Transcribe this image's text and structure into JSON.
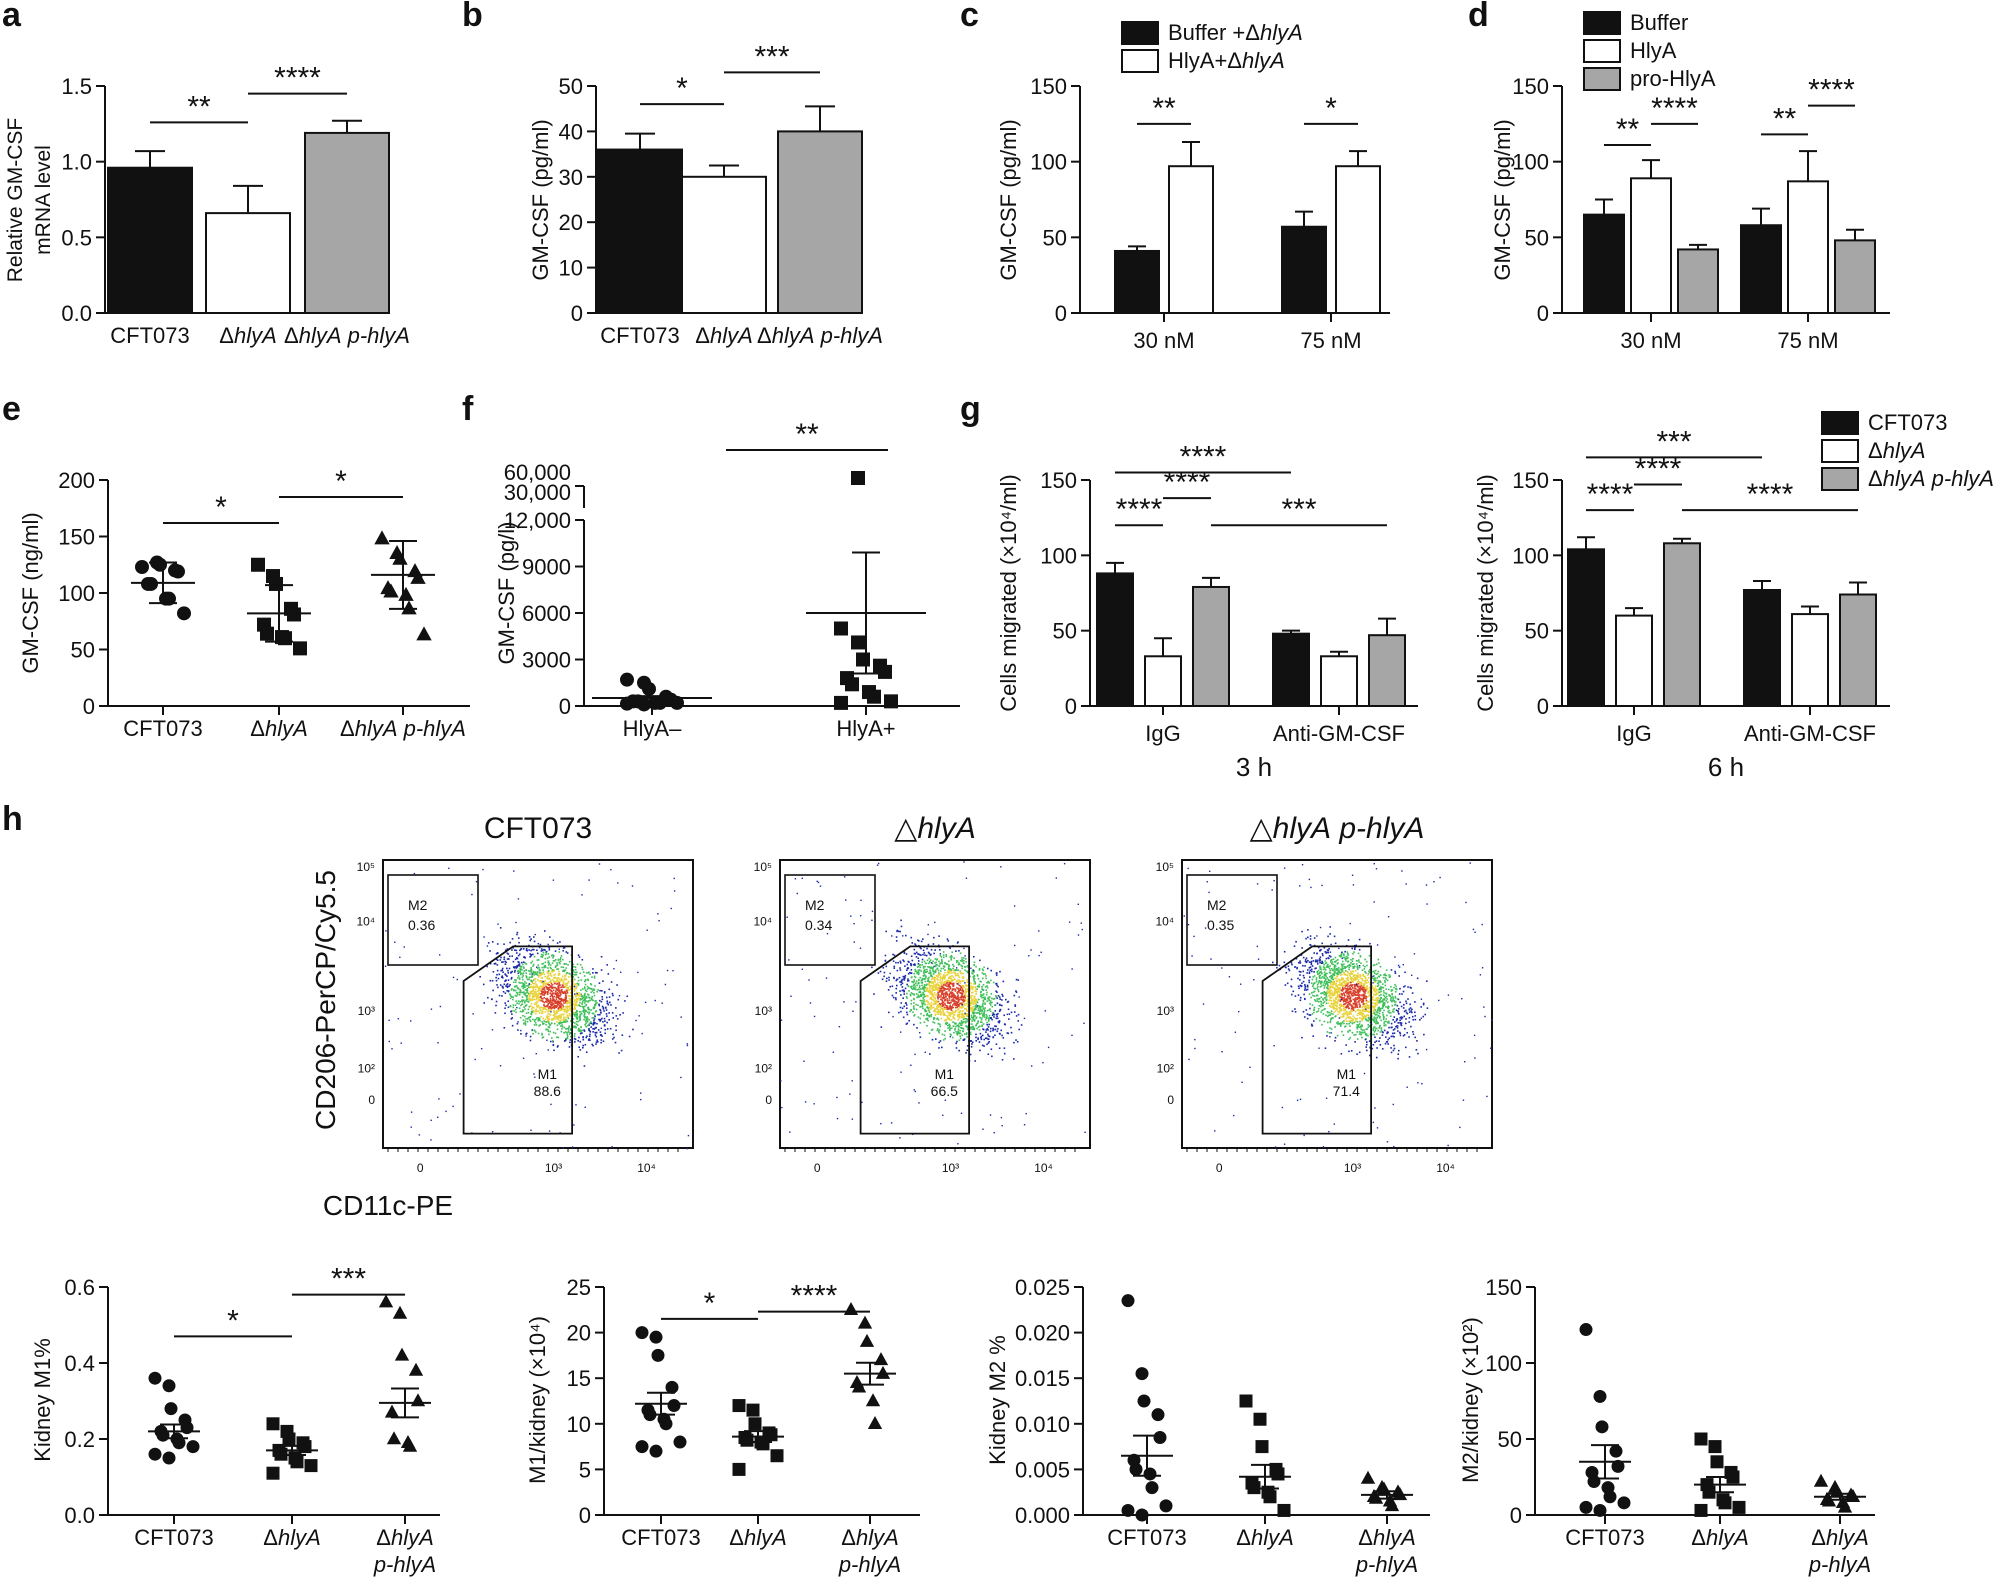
{
  "figure": {
    "panel_letters": [
      "a",
      "b",
      "c",
      "d",
      "e",
      "f",
      "g",
      "h"
    ],
    "legend_c": [
      "Buffer +ΔhlyA",
      "HlyA+ΔhlyA"
    ],
    "legend_d": [
      "Buffer",
      "HlyA",
      "pro-HlyA"
    ],
    "legend_g": [
      "CFT073",
      "ΔhlyA",
      "ΔhlyA p-hlyA"
    ]
  },
  "colors": {
    "black": "#111111",
    "white": "#ffffff",
    "gray": "#a6a6a6",
    "flow_blue": "#1a2aa8",
    "flow_green": "#3fbf5a",
    "flow_yellow": "#e8d23a",
    "flow_red": "#d8402b"
  },
  "chart_data": [
    {
      "id": "a",
      "type": "bar",
      "title": "",
      "xlabel": "",
      "ylabel": "Relative GM-CSF mRNA level",
      "ylabel_lines": [
        "Relative GM-CSF",
        "mRNA level"
      ],
      "categories": [
        "CFT073",
        "ΔhlyA",
        "ΔhlyA p-hlyA"
      ],
      "values": [
        0.96,
        0.66,
        1.19
      ],
      "errors": [
        0.11,
        0.18,
        0.08
      ],
      "bar_colors": [
        "black",
        "white",
        "gray"
      ],
      "ylim": [
        0,
        1.5
      ],
      "yticks": [
        0.0,
        0.5,
        1.0,
        1.5
      ],
      "ytick_labels": [
        "0.0",
        "0.5",
        "1.0",
        "1.5"
      ],
      "significance": [
        {
          "from": 0,
          "to": 1,
          "label": "**",
          "y": 1.26
        },
        {
          "from": 1,
          "to": 2,
          "label": "****",
          "y": 1.45
        }
      ]
    },
    {
      "id": "b",
      "type": "bar",
      "ylabel": "GM-CSF (pg/ml)",
      "categories": [
        "CFT073",
        "ΔhlyA",
        "ΔhlyA p-hlyA"
      ],
      "values": [
        36,
        30,
        40
      ],
      "errors": [
        3.5,
        2.5,
        5.5
      ],
      "bar_colors": [
        "black",
        "white",
        "gray"
      ],
      "ylim": [
        0,
        50
      ],
      "yticks": [
        0,
        10,
        20,
        30,
        40,
        50
      ],
      "significance": [
        {
          "from": 0,
          "to": 1,
          "label": "*",
          "y": 46
        },
        {
          "from": 1,
          "to": 2,
          "label": "***",
          "y": 53
        }
      ]
    },
    {
      "id": "c",
      "type": "bar",
      "ylabel": "GM-CSF (pg/ml)",
      "groups": [
        "30 nM",
        "75 nM"
      ],
      "series": [
        {
          "name": "Buffer +ΔhlyA",
          "color": "black",
          "values": [
            41,
            57
          ],
          "errors": [
            3,
            10
          ]
        },
        {
          "name": "HlyA+ΔhlyA",
          "color": "white",
          "values": [
            97,
            97
          ],
          "errors": [
            16,
            10
          ]
        }
      ],
      "ylim": [
        0,
        150
      ],
      "yticks": [
        0,
        50,
        100,
        150
      ],
      "significance": [
        {
          "group": 0,
          "from": 0,
          "to": 1,
          "label": "**",
          "y": 125
        },
        {
          "group": 1,
          "from": 0,
          "to": 1,
          "label": "*",
          "y": 125
        }
      ]
    },
    {
      "id": "d",
      "type": "bar",
      "ylabel": "GM-CSF (pg/ml)",
      "groups": [
        "30 nM",
        "75 nM"
      ],
      "series": [
        {
          "name": "Buffer",
          "color": "black",
          "values": [
            65,
            58
          ],
          "errors": [
            10,
            11
          ]
        },
        {
          "name": "HlyA",
          "color": "white",
          "values": [
            89,
            87
          ],
          "errors": [
            12,
            20
          ]
        },
        {
          "name": "pro-HlyA",
          "color": "gray",
          "values": [
            42,
            48
          ],
          "errors": [
            3,
            7
          ]
        }
      ],
      "ylim": [
        0,
        150
      ],
      "yticks": [
        0,
        50,
        100,
        150
      ],
      "significance": [
        {
          "group": 0,
          "from": 0,
          "to": 1,
          "label": "**",
          "y": 111
        },
        {
          "group": 0,
          "from": 1,
          "to": 2,
          "label": "****",
          "y": 125
        },
        {
          "group": 1,
          "from": 0,
          "to": 1,
          "label": "**",
          "y": 118
        },
        {
          "group": 1,
          "from": 1,
          "to": 2,
          "label": "****",
          "y": 137
        }
      ]
    },
    {
      "id": "e",
      "type": "scatter",
      "ylabel": "GM-CSF (ng/ml)",
      "categories": [
        "CFT073",
        "ΔhlyA",
        "ΔhlyA p-hlyA"
      ],
      "markers": [
        "circle",
        "square",
        "triangle"
      ],
      "points": [
        [
          123,
          127,
          125,
          120,
          119,
          108,
          108,
          95,
          95,
          82
        ],
        [
          125,
          115,
          108,
          86,
          81,
          72,
          64,
          61,
          60,
          51
        ],
        [
          148,
          135,
          130,
          119,
          113,
          104,
          101,
          98,
          86,
          63
        ]
      ],
      "means": [
        109,
        82,
        116
      ],
      "sd": [
        18,
        25,
        30
      ],
      "ylim": [
        0,
        200
      ],
      "yticks": [
        0,
        50,
        100,
        150,
        200
      ],
      "significance": [
        {
          "from": 0,
          "to": 1,
          "label": "*",
          "y": 162
        },
        {
          "from": 1,
          "to": 2,
          "label": "*",
          "y": 185
        }
      ]
    },
    {
      "id": "f",
      "type": "scatter",
      "ylabel": "GM-CSF (pg/l)",
      "categories": [
        "HlyA–",
        "HlyA+"
      ],
      "markers": [
        "circle",
        "square"
      ],
      "points": [
        [
          1700,
          1500,
          1100,
          600,
          400,
          300,
          300,
          200,
          200,
          200,
          150,
          100
        ],
        [
          5000,
          4100,
          3000,
          2600,
          2200,
          1800,
          1400,
          900,
          600,
          300,
          200,
          50000
        ]
      ],
      "means": [
        520,
        6000
      ],
      "sd": [
        120,
        3900
      ],
      "sem_lower": [
        220,
        2100
      ],
      "ylim": [
        0,
        12000
      ],
      "yticks": [
        0,
        3000,
        6000,
        9000,
        12000
      ],
      "ytick_labels": [
        "0",
        "3000",
        "6000",
        "9000",
        "12,000"
      ],
      "broken_axis_labels": [
        "30,000",
        "60,000"
      ],
      "significance": [
        {
          "from": 0,
          "to": 1,
          "label": "**",
          "y": "top"
        }
      ]
    },
    {
      "id": "g-3h",
      "type": "bar",
      "ylabel": "Cells migrated (×10⁴/ml)",
      "xlabel": "3 h",
      "groups": [
        "IgG",
        "Anti-GM-CSF"
      ],
      "series": [
        {
          "name": "CFT073",
          "color": "black",
          "values": [
            88,
            48
          ],
          "errors": [
            7,
            2
          ]
        },
        {
          "name": "ΔhlyA",
          "color": "white",
          "values": [
            33,
            33
          ],
          "errors": [
            12,
            3
          ]
        },
        {
          "name": "ΔhlyA p-hlyA",
          "color": "gray",
          "values": [
            79,
            47
          ],
          "errors": [
            6,
            11
          ]
        }
      ],
      "ylim": [
        0,
        150
      ],
      "yticks": [
        0,
        50,
        100,
        150
      ],
      "significance": [
        {
          "label": "****",
          "y": 120,
          "note": "IgG CFT073 vs IgG ΔhlyA"
        },
        {
          "label": "****",
          "y": 138,
          "note": "IgG ΔhlyA vs IgG ΔhlyA p-hlyA"
        },
        {
          "label": "****",
          "y": 155,
          "note": "IgG CFT073 vs Anti-GM-CSF CFT073"
        },
        {
          "label": "***",
          "y": 120,
          "note": "IgG ΔhlyA p-hlyA vs Anti-GM-CSF ΔhlyA p-hlyA"
        }
      ]
    },
    {
      "id": "g-6h",
      "type": "bar",
      "ylabel": "Cells migrated (×10⁴/ml)",
      "xlabel": "6 h",
      "groups": [
        "IgG",
        "Anti-GM-CSF"
      ],
      "series": [
        {
          "name": "CFT073",
          "color": "black",
          "values": [
            104,
            77
          ],
          "errors": [
            8,
            6
          ]
        },
        {
          "name": "ΔhlyA",
          "color": "white",
          "values": [
            60,
            61
          ],
          "errors": [
            5,
            5
          ]
        },
        {
          "name": "ΔhlyA p-hlyA",
          "color": "gray",
          "values": [
            108,
            74
          ],
          "errors": [
            3,
            8
          ]
        }
      ],
      "ylim": [
        0,
        150
      ],
      "yticks": [
        0,
        50,
        100,
        150
      ],
      "significance": [
        {
          "label": "****",
          "y": 130,
          "note": "IgG CFT073 vs IgG ΔhlyA"
        },
        {
          "label": "****",
          "y": 147,
          "note": "IgG ΔhlyA vs IgG ΔhlyA p-hlyA"
        },
        {
          "label": "***",
          "y": 165,
          "note": "IgG CFT073 vs Anti-GM-CSF CFT073"
        },
        {
          "label": "****",
          "y": 130,
          "note": "IgG ΔhlyA p-hlyA vs Anti-GM-CSF ΔhlyA p-hlyA"
        }
      ]
    },
    {
      "id": "h-flow",
      "type": "scatter",
      "ylabel": "CD206-PerCP/Cy5.5",
      "xlabel": "CD11c-PE",
      "panels": [
        {
          "title": "CFT073",
          "m2_label": "M2",
          "m2": "0.36",
          "m1_label": "M1",
          "m1": "88.6"
        },
        {
          "title": "△hlyA",
          "m2_label": "M2",
          "m2": "0.34",
          "m1_label": "M1",
          "m1": "66.5"
        },
        {
          "title": "△hlyA p-hlyA",
          "m2_label": "M2",
          "m2": "0.35",
          "m1_label": "M1",
          "m1": "71.4"
        }
      ],
      "yticks": [
        "10⁵",
        "10⁴",
        "10³",
        "10²",
        "0"
      ],
      "xticks": [
        "0",
        "10³",
        "10⁴"
      ]
    },
    {
      "id": "h-m1pct",
      "type": "scatter",
      "ylabel": "Kidney M1%",
      "categories": [
        "CFT073",
        "ΔhlyA",
        "ΔhlyA p-hlyA"
      ],
      "category_lines": [
        [
          "CFT073"
        ],
        [
          "ΔhlyA"
        ],
        [
          "ΔhlyA",
          "p-hlyA"
        ]
      ],
      "markers": [
        "circle",
        "square",
        "triangle"
      ],
      "points": [
        [
          0.36,
          0.34,
          0.28,
          0.25,
          0.23,
          0.22,
          0.21,
          0.2,
          0.19,
          0.18,
          0.16,
          0.15
        ],
        [
          0.24,
          0.22,
          0.2,
          0.19,
          0.18,
          0.17,
          0.16,
          0.15,
          0.14,
          0.13,
          0.11
        ],
        [
          0.56,
          0.53,
          0.42,
          0.38,
          0.3,
          0.27,
          0.2,
          0.19,
          0.18
        ]
      ],
      "means": [
        0.22,
        0.17,
        0.295
      ],
      "sem": [
        0.018,
        0.012,
        0.038
      ],
      "ylim": [
        0,
        0.6
      ],
      "yticks": [
        0.0,
        0.2,
        0.4,
        0.6
      ],
      "ytick_labels": [
        "0.0",
        "0.2",
        "0.4",
        "0.6"
      ],
      "significance": [
        {
          "from": 0,
          "to": 1,
          "label": "*",
          "y": 0.47
        },
        {
          "from": 1,
          "to": 2,
          "label": "***",
          "y": 0.58
        }
      ]
    },
    {
      "id": "h-m1kidney",
      "type": "scatter",
      "ylabel": "M1/kidney (×10⁴)",
      "categories": [
        "CFT073",
        "ΔhlyA",
        "ΔhlyA p-hlyA"
      ],
      "category_lines": [
        [
          "CFT073"
        ],
        [
          "ΔhlyA"
        ],
        [
          "ΔhlyA",
          "p-hlyA"
        ]
      ],
      "markers": [
        "circle",
        "square",
        "triangle"
      ],
      "points": [
        [
          20,
          19.5,
          17.5,
          14,
          12,
          11.5,
          11,
          10.5,
          10,
          8,
          7.5,
          7
        ],
        [
          12,
          11.5,
          10,
          9,
          8.8,
          8.5,
          8.2,
          8,
          7.8,
          6.5,
          5
        ],
        [
          22.5,
          21,
          19,
          17,
          15.5,
          14.5,
          14,
          12.5,
          10
        ]
      ],
      "means": [
        12.2,
        8.6,
        15.5
      ],
      "sem": [
        1.2,
        0.6,
        1.2
      ],
      "ylim": [
        0,
        25
      ],
      "yticks": [
        0,
        5,
        10,
        15,
        20,
        25
      ],
      "significance": [
        {
          "from": 0,
          "to": 1,
          "label": "*",
          "y": 21.5
        },
        {
          "from": 1,
          "to": 2,
          "label": "****",
          "y": 22.3
        }
      ]
    },
    {
      "id": "h-m2pct",
      "type": "scatter",
      "ylabel": "Kidney M2 %",
      "categories": [
        "CFT073",
        "ΔhlyA",
        "ΔhlyA p-hlyA"
      ],
      "category_lines": [
        [
          "CFT073"
        ],
        [
          "ΔhlyA"
        ],
        [
          "ΔhlyA",
          "p-hlyA"
        ]
      ],
      "markers": [
        "circle",
        "square",
        "triangle"
      ],
      "points": [
        [
          0.0235,
          0.0155,
          0.0125,
          0.011,
          0.0085,
          0.006,
          0.005,
          0.0045,
          0.003,
          0.001,
          0.0005,
          0.0
        ],
        [
          0.0125,
          0.0105,
          0.0075,
          0.005,
          0.0045,
          0.0035,
          0.003,
          0.0025,
          0.002,
          0.0005
        ],
        [
          0.004,
          0.003,
          0.0028,
          0.0025,
          0.0022,
          0.002,
          0.0018,
          0.0015,
          0.001
        ]
      ],
      "means": [
        0.0065,
        0.0042,
        0.0022
      ],
      "sem": [
        0.0022,
        0.0013,
        0.0004
      ],
      "ylim": [
        0,
        0.025
      ],
      "yticks": [
        0,
        0.005,
        0.01,
        0.015,
        0.02,
        0.025
      ],
      "ytick_labels": [
        "0.000",
        "0.005",
        "0.010",
        "0.015",
        "0.020",
        "0.025"
      ]
    },
    {
      "id": "h-m2kidney",
      "type": "scatter",
      "ylabel": "M2/kidney (×10²)",
      "categories": [
        "CFT073",
        "ΔhlyA",
        "ΔhlyA p-hlyA"
      ],
      "category_lines": [
        [
          "CFT073"
        ],
        [
          "ΔhlyA"
        ],
        [
          "ΔhlyA",
          "p-hlyA"
        ]
      ],
      "markers": [
        "circle",
        "square",
        "triangle"
      ],
      "points": [
        [
          122,
          78,
          58,
          42,
          32,
          28,
          22,
          18,
          12,
          8,
          5,
          3
        ],
        [
          50,
          45,
          35,
          28,
          25,
          20,
          15,
          10,
          8,
          5,
          3
        ],
        [
          22,
          18,
          15,
          13,
          12,
          10,
          9,
          8,
          5
        ]
      ],
      "means": [
        35,
        20,
        12
      ],
      "sem": [
        11,
        5,
        2
      ],
      "ylim": [
        0,
        150
      ],
      "yticks": [
        0,
        50,
        100,
        150
      ]
    }
  ]
}
